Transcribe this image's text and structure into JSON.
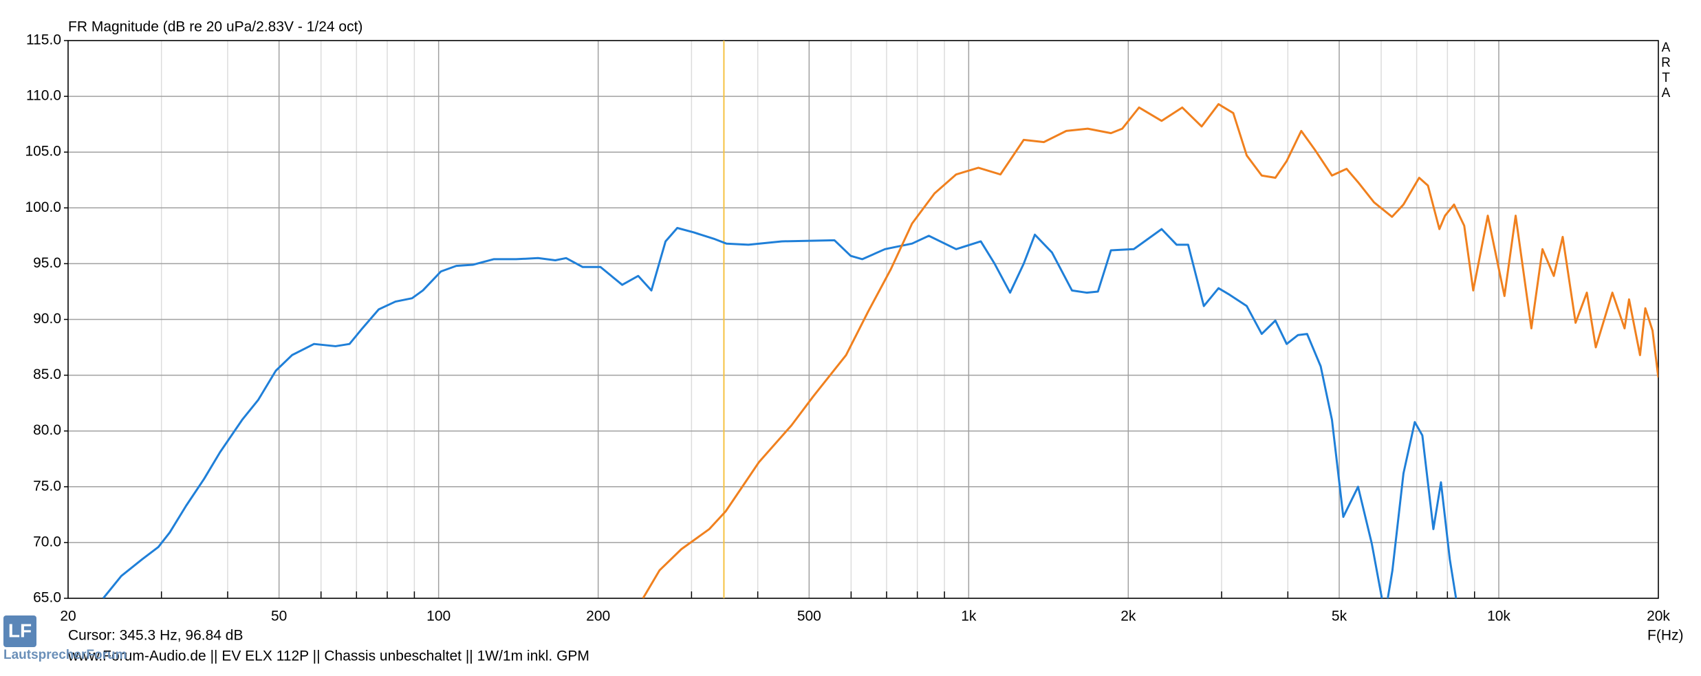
{
  "chart_data": {
    "type": "line",
    "title": "FR Magnitude (dB re 20 uPa/2.83V - 1/24 oct)",
    "side_label": "ARTA",
    "x_label": "F(Hz)",
    "cursor": {
      "x": 345.3,
      "label": "Cursor: 345.3 Hz, 96.84 dB",
      "color": "#f5c242"
    },
    "footer": "www.Forum-Audio.de  ||  EV ELX 112P  ||  Chassis unbeschaltet  ||  1W/1m  inkl. GPM",
    "logo": {
      "mark": "LF",
      "text": "LautsprecherForum"
    },
    "xscale": "log",
    "grid": true,
    "xlim": [
      20,
      20000
    ],
    "ylim": [
      65,
      115
    ],
    "xticks": [
      20,
      50,
      100,
      200,
      500,
      {
        "value": 1000,
        "label": "1k"
      },
      {
        "value": 2000,
        "label": "2k"
      },
      {
        "value": 5000,
        "label": "5k"
      },
      {
        "value": 10000,
        "label": "10k"
      },
      {
        "value": 20000,
        "label": "20k"
      }
    ],
    "x_minor_ticks": [
      30,
      40,
      60,
      70,
      80,
      90,
      300,
      400,
      600,
      700,
      800,
      900,
      3000,
      4000,
      6000,
      7000,
      8000,
      9000
    ],
    "yticks": [
      {
        "value": 65,
        "label": "65.0"
      },
      {
        "value": 70,
        "label": "70.0"
      },
      {
        "value": 75,
        "label": "75.0"
      },
      {
        "value": 80,
        "label": "80.0"
      },
      {
        "value": 85,
        "label": "85.0"
      },
      {
        "value": 90,
        "label": "90.0"
      },
      {
        "value": 95,
        "label": "95.0"
      },
      {
        "value": 100,
        "label": "100.0"
      },
      {
        "value": 105,
        "label": "105.0"
      },
      {
        "value": 110,
        "label": "110.0"
      },
      {
        "value": 115,
        "label": "115.0"
      }
    ],
    "series": [
      {
        "color": "#1f7fd8",
        "x": [
          23.3,
          25.2,
          27.6,
          29.6,
          31.1,
          33.4,
          36.1,
          38.7,
          42.6,
          45.7,
          49.3,
          52.9,
          58.2,
          63.9,
          67.9,
          71.8,
          77.1,
          82.9,
          89.1,
          93.4,
          101,
          108,
          116,
          127,
          140,
          154,
          166,
          174,
          187,
          202,
          222,
          238,
          252,
          268,
          282,
          303,
          332,
          349,
          384,
          444,
          558,
          599,
          630,
          695,
          782,
          841,
          947,
          1054,
          1119,
          1197,
          1270,
          1333,
          1436,
          1566,
          1669,
          1753,
          1855,
          2048,
          2312,
          2467,
          2594,
          2777,
          2960,
          3109,
          3346,
          3571,
          3789,
          3980,
          4181,
          4349,
          4613,
          4845,
          5090,
          5427,
          5760,
          6100,
          6300,
          6610,
          6943,
          7175,
          7527,
          7779,
          8083,
          8500
        ],
        "values": [
          65,
          67.0,
          68.5,
          69.6,
          70.9,
          73.3,
          75.7,
          78.1,
          81.0,
          82.8,
          85.4,
          86.8,
          87.8,
          87.6,
          87.8,
          89.2,
          90.9,
          91.6,
          91.9,
          92.6,
          94.3,
          94.8,
          94.9,
          95.4,
          95.4,
          95.5,
          95.3,
          95.5,
          94.7,
          94.7,
          93.1,
          93.9,
          92.6,
          97.0,
          98.2,
          97.8,
          97.2,
          96.8,
          96.7,
          97.0,
          97.1,
          95.7,
          95.4,
          96.3,
          96.8,
          97.5,
          96.3,
          97.0,
          95.0,
          92.4,
          95.0,
          97.6,
          96.0,
          92.6,
          92.4,
          92.5,
          96.2,
          96.3,
          98.1,
          96.7,
          96.7,
          91.2,
          92.8,
          92.2,
          91.2,
          88.7,
          89.9,
          87.8,
          88.6,
          88.7,
          85.8,
          81.0,
          72.3,
          75.0,
          69.9,
          63.5,
          67.5,
          76.2,
          80.8,
          79.6,
          71.2,
          75.4,
          68.5,
          62
        ]
      },
      {
        "color": "#f0801e",
        "x": [
          243,
          261,
          287,
          324,
          348,
          402,
          463,
          509,
          587,
          646,
          713,
          782,
          862,
          947,
          1043,
          1148,
          1270,
          1386,
          1528,
          1677,
          1855,
          1948,
          2096,
          2312,
          2528,
          2751,
          2960,
          3156,
          3346,
          3571,
          3789,
          3980,
          4240,
          4500,
          4845,
          5163,
          5427,
          5816,
          6290,
          6610,
          7076,
          7352,
          7726,
          7917,
          8234,
          8606,
          8949,
          9534,
          10250,
          10760,
          11520,
          12090,
          12700,
          13200,
          13960,
          14660,
          15240,
          16380,
          17270,
          17610,
          18470,
          18900,
          19500,
          20000
        ],
        "values": [
          65,
          67.5,
          69.4,
          71.2,
          72.8,
          77.2,
          80.5,
          83.1,
          86.8,
          90.7,
          94.5,
          98.6,
          101.3,
          103.0,
          103.6,
          103.0,
          106.1,
          105.9,
          106.9,
          107.1,
          106.7,
          107.1,
          109.0,
          107.8,
          109.0,
          107.3,
          109.3,
          108.5,
          104.7,
          102.9,
          102.7,
          104.2,
          106.9,
          105.2,
          102.9,
          103.5,
          102.3,
          100.5,
          99.2,
          100.3,
          102.7,
          102.0,
          98.1,
          99.3,
          100.3,
          98.4,
          92.6,
          99.3,
          92.1,
          99.3,
          89.2,
          96.3,
          93.9,
          97.4,
          89.7,
          92.4,
          87.5,
          92.4,
          89.2,
          91.8,
          86.8,
          91.0,
          89.0,
          84.8
        ]
      }
    ]
  }
}
